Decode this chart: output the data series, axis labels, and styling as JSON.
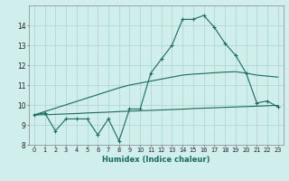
{
  "x": [
    0,
    1,
    2,
    3,
    4,
    5,
    6,
    7,
    8,
    9,
    10,
    11,
    12,
    13,
    14,
    15,
    16,
    17,
    18,
    19,
    20,
    21,
    22,
    23
  ],
  "y_main": [
    9.5,
    9.6,
    8.7,
    9.3,
    9.3,
    9.3,
    8.5,
    9.3,
    8.2,
    9.8,
    9.8,
    11.6,
    12.3,
    13.0,
    14.3,
    14.3,
    14.5,
    13.9,
    13.1,
    12.5,
    11.6,
    10.1,
    10.2,
    9.9
  ],
  "y_upper": [
    9.5,
    9.67,
    9.84,
    10.01,
    10.18,
    10.35,
    10.52,
    10.69,
    10.86,
    11.0,
    11.1,
    11.2,
    11.3,
    11.4,
    11.5,
    11.55,
    11.58,
    11.62,
    11.65,
    11.67,
    11.6,
    11.5,
    11.45,
    11.4
  ],
  "y_lower": [
    9.5,
    9.51,
    9.53,
    9.55,
    9.57,
    9.6,
    9.62,
    9.64,
    9.67,
    9.69,
    9.71,
    9.73,
    9.75,
    9.77,
    9.79,
    9.82,
    9.84,
    9.86,
    9.88,
    9.9,
    9.92,
    9.94,
    9.96,
    9.98
  ],
  "line_color": "#1a6b5a",
  "bg_color": "#d0eeeb",
  "grid_color": "#b0d8d4",
  "xlabel": "Humidex (Indice chaleur)",
  "ylim": [
    8,
    15
  ],
  "xlim": [
    -0.5,
    23.5
  ],
  "yticks": [
    8,
    9,
    10,
    11,
    12,
    13,
    14
  ],
  "xticks": [
    0,
    1,
    2,
    3,
    4,
    5,
    6,
    7,
    8,
    9,
    10,
    11,
    12,
    13,
    14,
    15,
    16,
    17,
    18,
    19,
    20,
    21,
    22,
    23
  ],
  "xtick_labels": [
    "0",
    "1",
    "2",
    "3",
    "4",
    "5",
    "6",
    "7",
    "8",
    "9",
    "10",
    "11",
    "12",
    "13",
    "14",
    "15",
    "16",
    "17",
    "18",
    "19",
    "20",
    "21",
    "22",
    "23"
  ]
}
